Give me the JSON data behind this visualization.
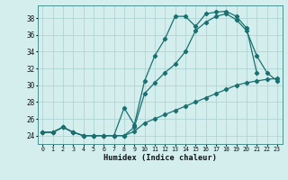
{
  "xlabel": "Humidex (Indice chaleur)",
  "xlim": [
    -0.5,
    23.5
  ],
  "ylim": [
    23.0,
    39.5
  ],
  "xticks": [
    0,
    1,
    2,
    3,
    4,
    5,
    6,
    7,
    8,
    9,
    10,
    11,
    12,
    13,
    14,
    15,
    16,
    17,
    18,
    19,
    20,
    21,
    22,
    23
  ],
  "yticks": [
    24,
    26,
    28,
    30,
    32,
    34,
    36,
    38
  ],
  "bg_color": "#d4eeee",
  "grid_color": "#b0d4d4",
  "line_color": "#1a7070",
  "line1_y": [
    24.4,
    24.4,
    25.0,
    24.4,
    24.0,
    24.0,
    24.0,
    24.0,
    27.3,
    25.3,
    30.5,
    33.5,
    35.5,
    38.2,
    38.2,
    37.0,
    38.5,
    38.7,
    38.8,
    38.2,
    36.8,
    31.5,
    null,
    null
  ],
  "line2_y": [
    24.4,
    24.4,
    25.0,
    24.4,
    24.0,
    24.0,
    24.0,
    24.0,
    24.0,
    25.0,
    29.0,
    30.3,
    31.5,
    32.5,
    34.0,
    36.5,
    37.5,
    38.2,
    38.5,
    37.8,
    36.5,
    33.5,
    31.5,
    30.5
  ],
  "line3_y": [
    24.4,
    24.4,
    25.0,
    24.4,
    24.0,
    24.0,
    24.0,
    24.0,
    24.0,
    24.5,
    25.5,
    26.0,
    26.5,
    27.0,
    27.5,
    28.0,
    28.5,
    29.0,
    29.5,
    30.0,
    30.3,
    30.5,
    30.7,
    30.8
  ]
}
